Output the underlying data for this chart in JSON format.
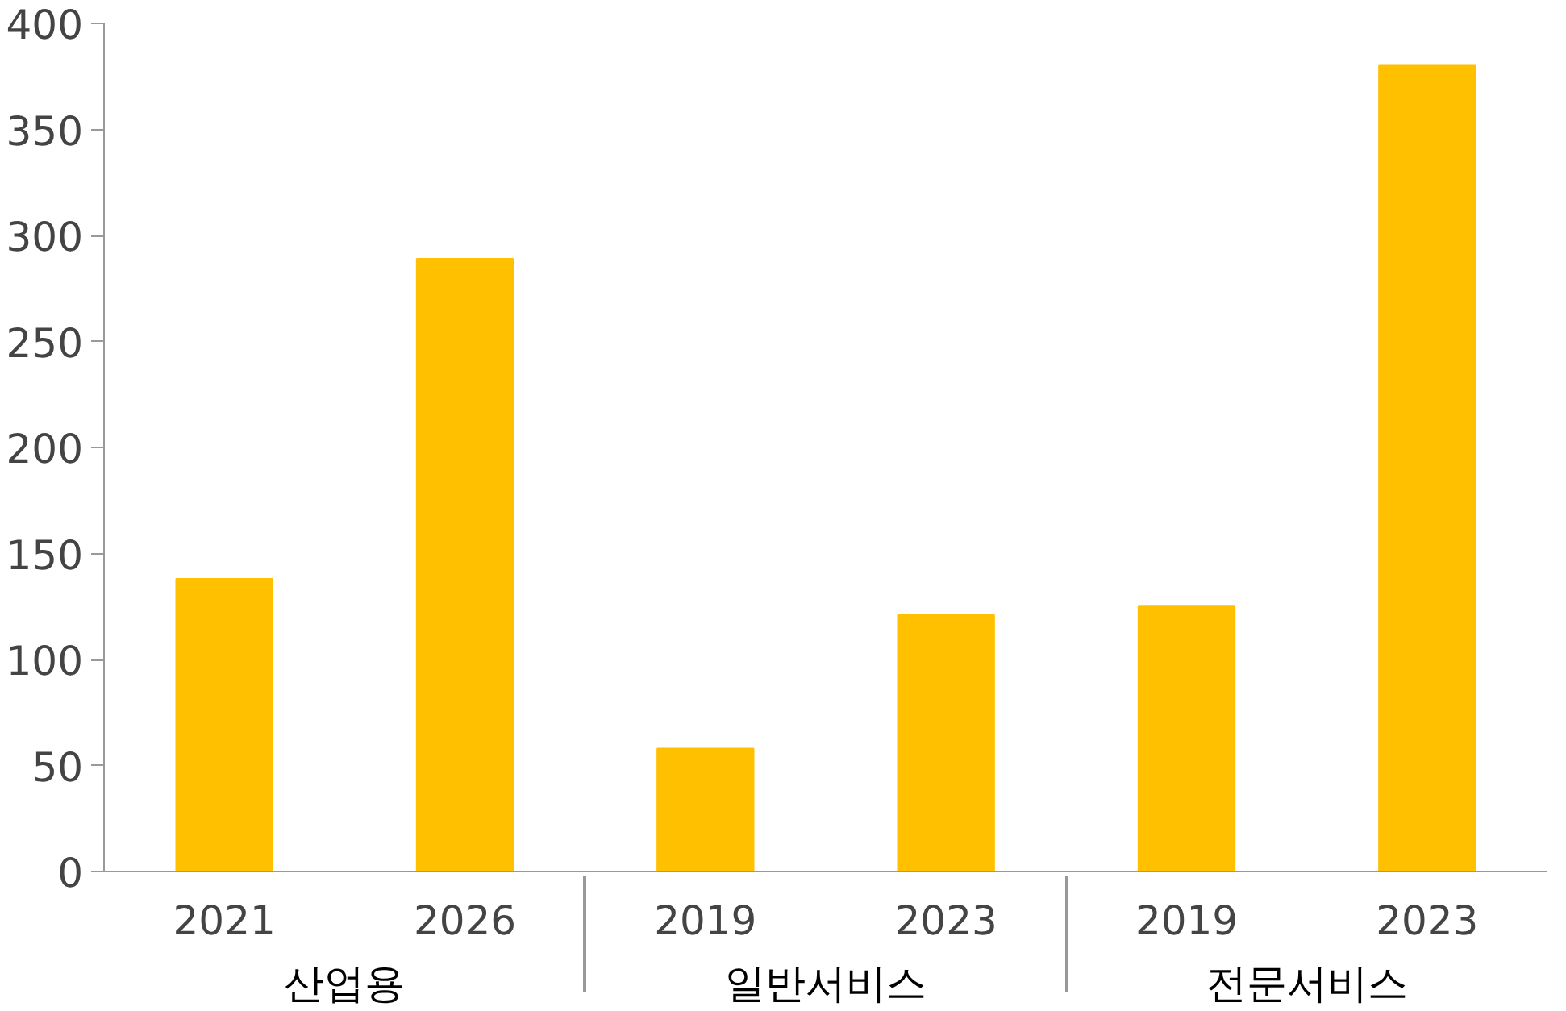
{
  "chart_data": {
    "type": "bar",
    "categories": [
      "2021",
      "2026",
      "2019",
      "2023",
      "2019",
      "2023"
    ],
    "annotations": [
      "산업용",
      "일반서비스",
      "전문서비스"
    ],
    "values": [
      138,
      289,
      58,
      121,
      125,
      380
    ],
    "color": "#ffc000",
    "ylim": [
      0,
      400
    ],
    "yticks": [
      0,
      50,
      100,
      150,
      200,
      250,
      300,
      350,
      400
    ],
    "grid": false
  }
}
